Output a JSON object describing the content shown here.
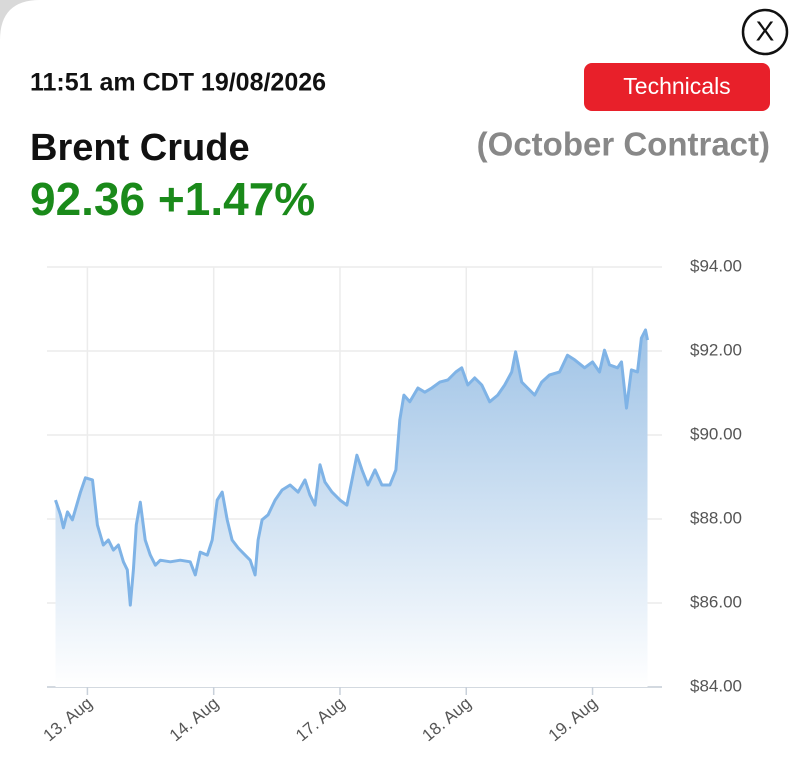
{
  "header": {
    "timestamp": "11:51 am CDT 19/08/2026",
    "button": "Technicals",
    "close": "X",
    "instrument": "Brent Crude",
    "contract": "(October Contract)",
    "price": "92.36",
    "change": "+1.47%"
  },
  "chart_data": {
    "type": "area",
    "x": [
      -0.253,
      -0.213,
      -0.19,
      -0.158,
      -0.119,
      -0.055,
      -0.016,
      0.04,
      0.079,
      0.126,
      0.166,
      0.206,
      0.245,
      0.285,
      0.316,
      0.34,
      0.364,
      0.387,
      0.419,
      0.458,
      0.498,
      0.538,
      0.577,
      0.656,
      0.735,
      0.814,
      0.854,
      0.893,
      0.949,
      0.988,
      1.028,
      1.067,
      1.107,
      1.146,
      1.194,
      1.249,
      1.289,
      1.328,
      1.352,
      1.383,
      1.431,
      1.486,
      1.542,
      1.605,
      1.668,
      1.723,
      1.763,
      1.802,
      1.842,
      1.881,
      1.937,
      2.0,
      2.055,
      2.095,
      2.134,
      2.174,
      2.221,
      2.277,
      2.332,
      2.395,
      2.443,
      2.474,
      2.506,
      2.553,
      2.617,
      2.672,
      2.727,
      2.791,
      2.854,
      2.917,
      2.964,
      3.012,
      3.067,
      3.123,
      3.186,
      3.249,
      3.304,
      3.36,
      3.391,
      3.439,
      3.486,
      3.542,
      3.597,
      3.66,
      3.739,
      3.802,
      3.858,
      3.937,
      4.0,
      4.055,
      4.095,
      4.134,
      4.198,
      4.229,
      4.269,
      4.308,
      4.356,
      4.387,
      4.419,
      4.435
    ],
    "series": [
      {
        "name": "Brent Crude",
        "color": "#7fb3e6",
        "values": [
          88.45,
          88.1,
          87.79,
          88.17,
          87.98,
          88.64,
          88.98,
          88.93,
          87.86,
          87.38,
          87.5,
          87.26,
          87.38,
          86.98,
          86.79,
          85.95,
          86.79,
          87.86,
          88.4,
          87.5,
          87.14,
          86.9,
          87.02,
          86.98,
          87.02,
          86.98,
          86.67,
          87.21,
          87.14,
          87.5,
          88.45,
          88.64,
          87.98,
          87.5,
          87.31,
          87.14,
          87.02,
          86.67,
          87.5,
          87.98,
          88.1,
          88.45,
          88.69,
          88.81,
          88.64,
          88.93,
          88.57,
          88.33,
          89.29,
          88.88,
          88.64,
          88.45,
          88.33,
          88.93,
          89.52,
          89.17,
          88.81,
          89.17,
          88.81,
          88.81,
          89.17,
          90.36,
          90.95,
          90.79,
          91.12,
          91.02,
          91.12,
          91.26,
          91.31,
          91.5,
          91.6,
          91.19,
          91.36,
          91.19,
          90.79,
          90.95,
          91.19,
          91.5,
          91.98,
          91.26,
          91.12,
          90.95,
          91.26,
          91.43,
          91.5,
          91.9,
          91.79,
          91.6,
          91.74,
          91.5,
          92.02,
          91.67,
          91.6,
          91.74,
          90.64,
          91.55,
          91.5,
          92.31,
          92.5,
          92.26
        ]
      }
    ],
    "xlim": [
      -0.32,
      4.55
    ],
    "xticks": [
      {
        "value": 0,
        "label": "13. Aug"
      },
      {
        "value": 1,
        "label": "14. Aug"
      },
      {
        "value": 2,
        "label": "17. Aug"
      },
      {
        "value": 3,
        "label": "18. Aug"
      },
      {
        "value": 4,
        "label": "19. Aug"
      }
    ],
    "ylim": [
      84,
      94
    ],
    "yticks": [
      {
        "value": 84,
        "label": "$84.00"
      },
      {
        "value": 86,
        "label": "$86.00"
      },
      {
        "value": 88,
        "label": "$88.00"
      },
      {
        "value": 90,
        "label": "$90.00"
      },
      {
        "value": 92,
        "label": "$92.00"
      },
      {
        "value": 94,
        "label": "$94.00"
      }
    ],
    "grid": true
  }
}
